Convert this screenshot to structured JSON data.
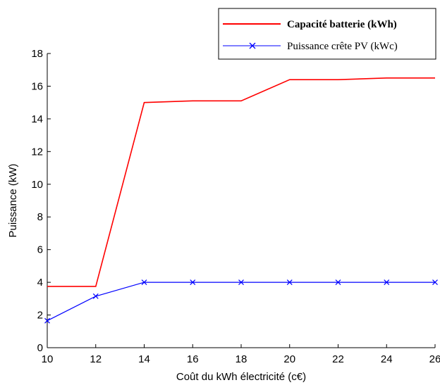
{
  "chart_data": {
    "type": "line",
    "title": "",
    "xlabel": "Coût du kWh électricité (c€)",
    "ylabel": "Puissance (kW)",
    "xlim": [
      10,
      26
    ],
    "ylim": [
      0,
      18
    ],
    "xticks": [
      10,
      12,
      14,
      16,
      18,
      20,
      22,
      24,
      26
    ],
    "yticks": [
      0,
      2,
      4,
      6,
      8,
      10,
      12,
      14,
      16,
      18
    ],
    "grid": false,
    "legend_position": "top-right",
    "series": [
      {
        "name": "Capacité batterie (kWh)",
        "color": "#ff0000",
        "marker": "none",
        "x": [
          10,
          12,
          14,
          16,
          18,
          20,
          22,
          24,
          26
        ],
        "values": [
          3.75,
          3.75,
          15.0,
          15.1,
          15.1,
          16.4,
          16.4,
          16.5,
          16.5
        ]
      },
      {
        "name": "Puissance crête PV (kWc)",
        "color": "#0000ff",
        "marker": "x",
        "x": [
          10,
          12,
          14,
          16,
          18,
          20,
          22,
          24,
          26
        ],
        "values": [
          1.65,
          3.15,
          4.0,
          4.0,
          4.0,
          4.0,
          4.0,
          4.0,
          4.0
        ]
      }
    ]
  }
}
